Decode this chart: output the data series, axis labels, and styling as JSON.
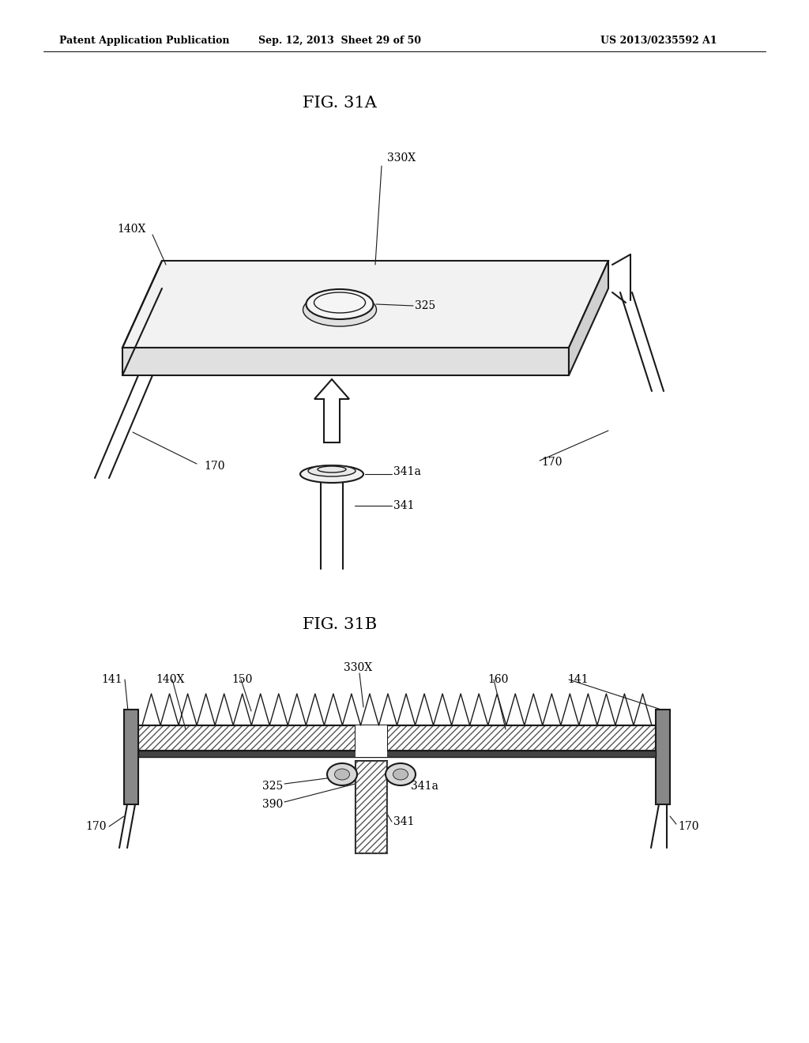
{
  "bg_color": "#ffffff",
  "line_color": "#1a1a1a",
  "header_text": "Patent Application Publication",
  "header_date": "Sep. 12, 2013  Sheet 29 of 50",
  "header_patent": "US 2013/0235592 A1",
  "fig31a_title": "FIG. 31A",
  "fig31b_title": "FIG. 31B"
}
